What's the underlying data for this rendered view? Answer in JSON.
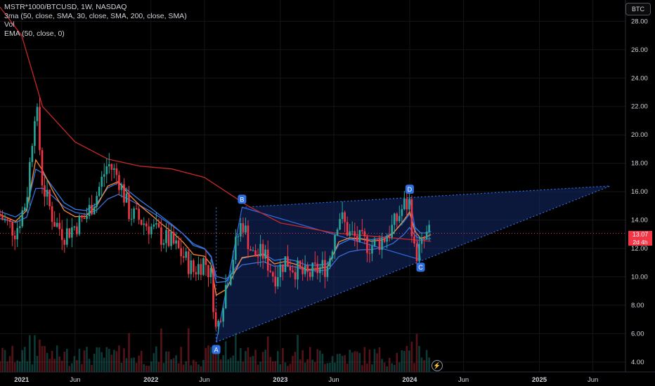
{
  "legend": {
    "symbol_line": "MSTR*1000/BTCUSD, 1W, NASDAQ",
    "ma_line": "3ma (50, close, SMA, 30, close, SMA, 200, close, SMA)",
    "vol_line": "Vol",
    "ema_line": "EMA (50, close, 0)"
  },
  "currency_button": "BTC",
  "last_price": {
    "value": "13.07",
    "countdown": "2d 4h"
  },
  "colors": {
    "up": "#26a69a",
    "down": "#f23645",
    "sma50": "#ff8a35",
    "sma30": "#2f7de1",
    "sma200": "#c62828",
    "ema50": "#3b6fd8",
    "pattern_fill": "#14296b",
    "pattern_line": "#2f6fe0"
  },
  "chart_data": {
    "type": "line",
    "y_axis": {
      "ticks": [
        "28.00",
        "26.00",
        "24.00",
        "22.00",
        "20.00",
        "18.00",
        "16.00",
        "14.00",
        "12.00",
        "10.00",
        "8.00",
        "6.00",
        "4.00"
      ],
      "range": [
        3.3,
        29.5
      ],
      "position": "right"
    },
    "x_axis": {
      "labels": [
        "2021",
        "Jun",
        "2022",
        "Jun",
        "2023",
        "Jun",
        "2024",
        "Jun",
        "2025",
        "Jun"
      ],
      "dates": [
        "2021-01-01",
        "2021-06-01",
        "2022-01-01",
        "2022-06-01",
        "2023-01-01",
        "2023-06-01",
        "2024-01-01",
        "2024-06-01",
        "2025-01-01",
        "2025-06-01"
      ]
    },
    "grid": true,
    "price_close_approx": [
      {
        "date": "2020-11-01",
        "v": 14.3
      },
      {
        "date": "2020-12-15",
        "v": 13.2
      },
      {
        "date": "2021-01-15",
        "v": 15.5
      },
      {
        "date": "2021-02-10",
        "v": 22.5
      },
      {
        "date": "2021-03-01",
        "v": 16.5
      },
      {
        "date": "2021-04-01",
        "v": 14.0
      },
      {
        "date": "2021-05-01",
        "v": 13.0
      },
      {
        "date": "2021-06-01",
        "v": 13.6
      },
      {
        "date": "2021-07-01",
        "v": 14.2
      },
      {
        "date": "2021-08-01",
        "v": 15.8
      },
      {
        "date": "2021-09-01",
        "v": 18.0
      },
      {
        "date": "2021-10-01",
        "v": 17.0
      },
      {
        "date": "2021-11-01",
        "v": 14.5
      },
      {
        "date": "2021-12-01",
        "v": 14.0
      },
      {
        "date": "2022-01-01",
        "v": 13.5
      },
      {
        "date": "2022-02-01",
        "v": 12.8
      },
      {
        "date": "2022-03-01",
        "v": 12.4
      },
      {
        "date": "2022-04-01",
        "v": 11.5
      },
      {
        "date": "2022-05-01",
        "v": 10.4
      },
      {
        "date": "2022-06-01",
        "v": 11.2
      },
      {
        "date": "2022-06-20",
        "v": 10.0
      },
      {
        "date": "2022-07-04",
        "v": 6.0
      },
      {
        "date": "2022-08-01",
        "v": 9.5
      },
      {
        "date": "2022-09-15",
        "v": 14.0
      },
      {
        "date": "2022-10-15",
        "v": 11.5
      },
      {
        "date": "2022-11-15",
        "v": 11.6
      },
      {
        "date": "2022-12-15",
        "v": 10.0
      },
      {
        "date": "2023-01-15",
        "v": 11.2
      },
      {
        "date": "2023-02-15",
        "v": 10.5
      },
      {
        "date": "2023-03-15",
        "v": 10.0
      },
      {
        "date": "2023-04-15",
        "v": 10.5
      },
      {
        "date": "2023-05-15",
        "v": 10.8
      },
      {
        "date": "2023-06-15",
        "v": 14.5
      },
      {
        "date": "2023-07-15",
        "v": 13.0
      },
      {
        "date": "2023-08-15",
        "v": 12.5
      },
      {
        "date": "2023-09-15",
        "v": 12.2
      },
      {
        "date": "2023-10-15",
        "v": 12.6
      },
      {
        "date": "2023-11-15",
        "v": 13.5
      },
      {
        "date": "2023-12-15",
        "v": 15.0
      },
      {
        "date": "2024-01-01",
        "v": 15.2
      },
      {
        "date": "2024-01-15",
        "v": 11.5
      },
      {
        "date": "2024-02-01",
        "v": 12.0
      },
      {
        "date": "2024-02-15",
        "v": 12.8
      },
      {
        "date": "2024-03-01",
        "v": 13.07
      }
    ],
    "pattern": {
      "type": "triangle",
      "points": [
        {
          "label": "A",
          "date": "2022-07-04",
          "v": 5.4
        },
        {
          "label": "B",
          "date": "2022-09-15",
          "v": 14.9
        },
        {
          "label": "C",
          "date": "2024-02-01",
          "v": 11.2
        },
        {
          "label": "D",
          "date": "2024-01-01",
          "v": 15.6
        }
      ],
      "apex": {
        "date": "2025-07-20",
        "v": 16.4
      }
    }
  }
}
